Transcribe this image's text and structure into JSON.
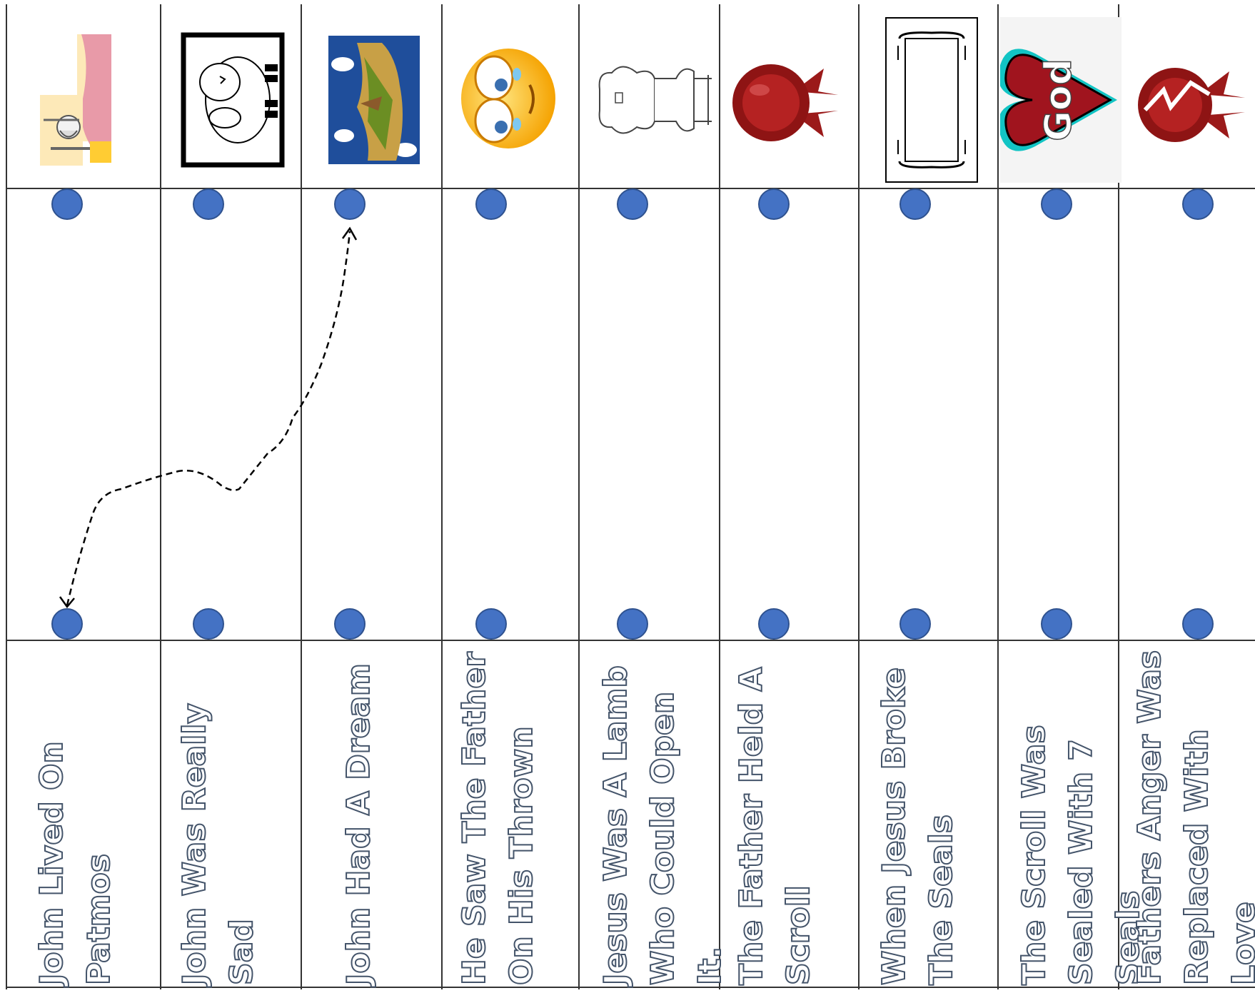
{
  "worksheet": {
    "columns": [
      {
        "icon": "john-on-patmos-picture-icon",
        "label": "John Lived On Patmos"
      },
      {
        "icon": "sad-lamb-picture-icon",
        "label": "John Was Really Sad"
      },
      {
        "icon": "island-picture-icon",
        "label": "John Had A Dream"
      },
      {
        "icon": "crying-face-icon",
        "label": "He Saw The Father On His Thrown"
      },
      {
        "icon": "throne-icon",
        "label": "Jesus Was A Lamb Who Could Open It."
      },
      {
        "icon": "wax-seal-icon",
        "label": "The Father Held A Scroll"
      },
      {
        "icon": "scroll-icon",
        "label": "When Jesus Broke The Seals"
      },
      {
        "icon": "god-heart-icon",
        "label": "The Scroll Was Sealed With 7 Seals"
      },
      {
        "icon": "broken-seal-icon",
        "label": "Fathers Anger Was Replaced With Love"
      }
    ],
    "connection": {
      "from_column": 1,
      "from_row": "bottom",
      "to_column": 3,
      "to_row": "top",
      "style": "dashed-arrow-both-ends"
    }
  },
  "colors": {
    "dot": "#4472C4",
    "label_outline": "#44546A",
    "grid": "#333333"
  }
}
